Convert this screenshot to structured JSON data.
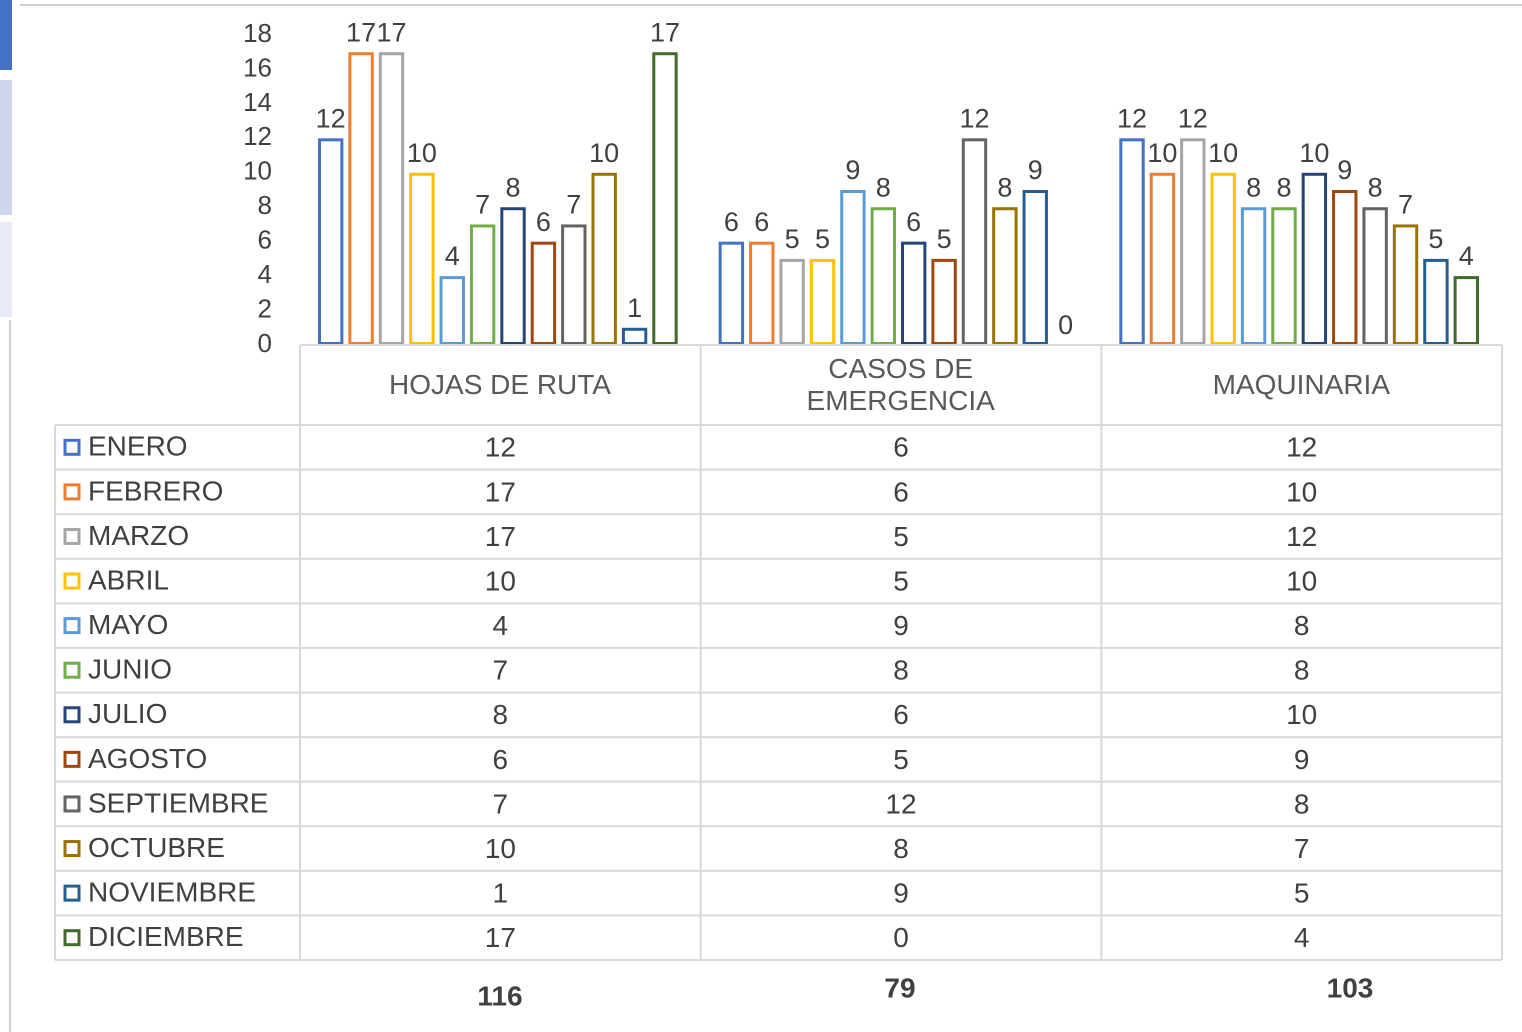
{
  "chart_data": {
    "type": "bar",
    "categories": [
      "HOJAS DE RUTA",
      "CASOS DE EMERGENCIA",
      "MAQUINARIA"
    ],
    "series": [
      {
        "name": "ENERO",
        "color": "#4472c4",
        "values": [
          12,
          6,
          12
        ]
      },
      {
        "name": "FEBRERO",
        "color": "#ed7d31",
        "values": [
          17,
          6,
          10
        ]
      },
      {
        "name": "MARZO",
        "color": "#a5a5a5",
        "values": [
          17,
          5,
          12
        ]
      },
      {
        "name": "ABRIL",
        "color": "#ffc000",
        "values": [
          10,
          5,
          10
        ]
      },
      {
        "name": "MAYO",
        "color": "#5b9bd5",
        "values": [
          4,
          9,
          8
        ]
      },
      {
        "name": "JUNIO",
        "color": "#70ad47",
        "values": [
          7,
          8,
          8
        ]
      },
      {
        "name": "JULIO",
        "color": "#264478",
        "values": [
          8,
          6,
          10
        ]
      },
      {
        "name": "AGOSTO",
        "color": "#9e480e",
        "values": [
          6,
          5,
          9
        ]
      },
      {
        "name": "SEPTIEMBRE",
        "color": "#636363",
        "values": [
          7,
          12,
          8
        ]
      },
      {
        "name": "OCTUBRE",
        "color": "#997300",
        "values": [
          10,
          8,
          7
        ]
      },
      {
        "name": "NOVIEMBRE",
        "color": "#255e91",
        "values": [
          1,
          9,
          5
        ]
      },
      {
        "name": "DICIEMBRE",
        "color": "#43682b",
        "values": [
          17,
          0,
          4
        ]
      }
    ],
    "ylim": [
      0,
      18
    ],
    "yticks": [
      0,
      2,
      4,
      6,
      8,
      10,
      12,
      14,
      16,
      18
    ],
    "totals": [
      116,
      79,
      103
    ]
  }
}
